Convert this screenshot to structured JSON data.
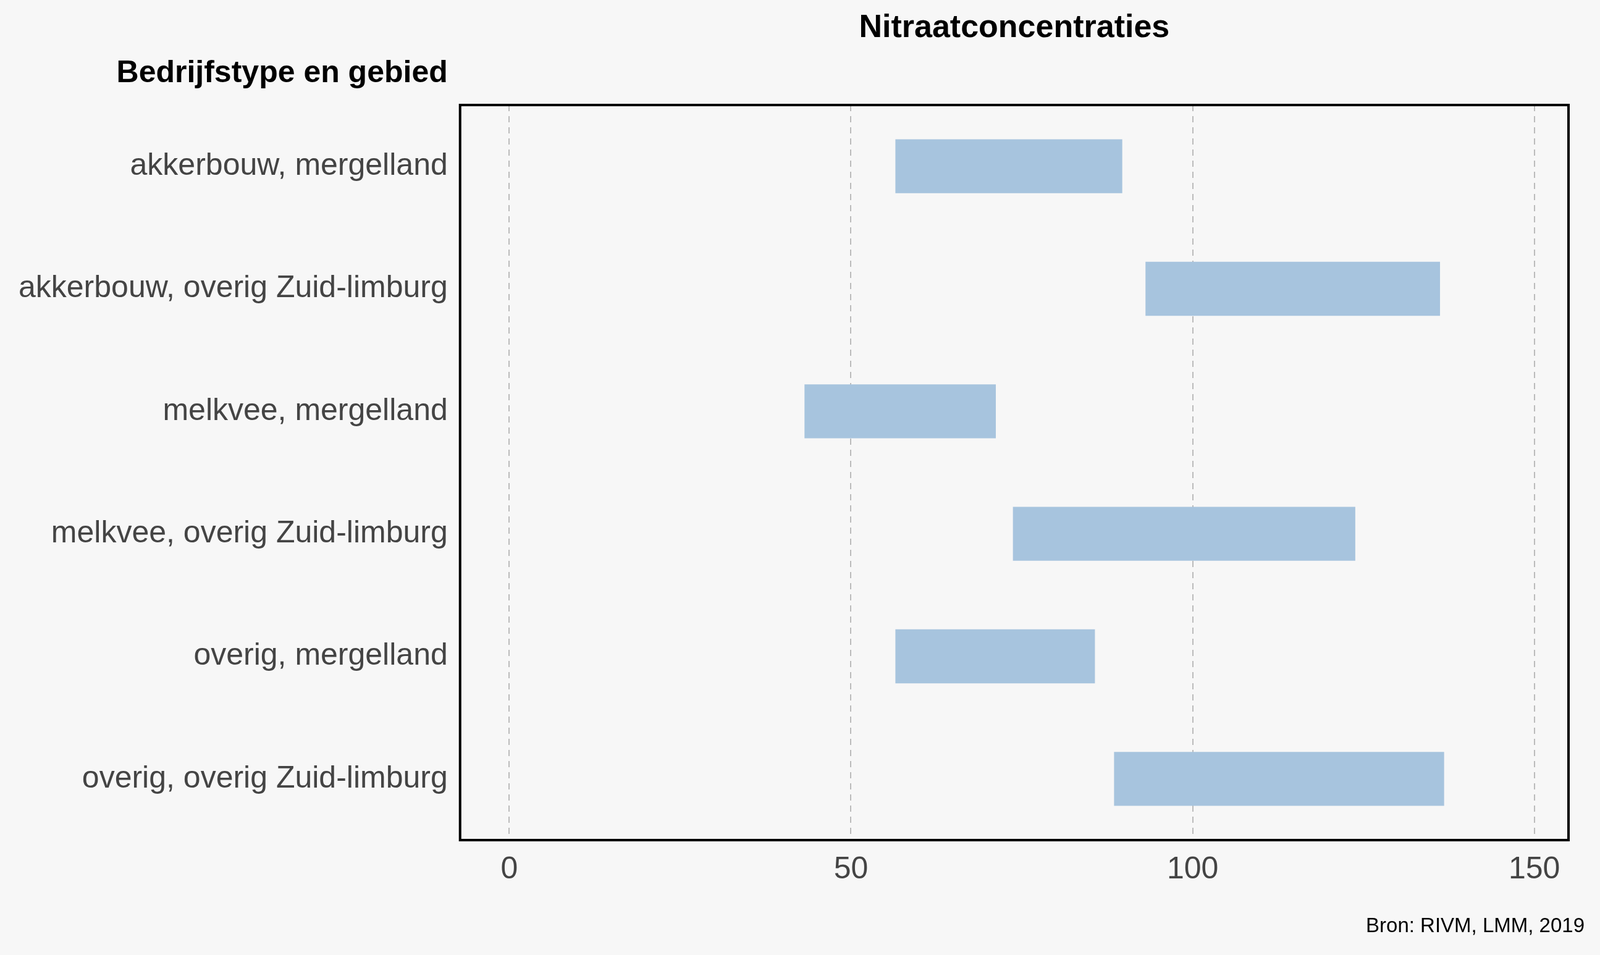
{
  "chart_data": {
    "type": "floating_bar",
    "orientation": "horizontal",
    "title": "Nitraatconcentraties",
    "y_label": "Bedrijfstype en gebied",
    "annotations": [
      "Bron: RIVM, LMM, 2019"
    ],
    "categories": [
      "akkerbouw, mergelland",
      "akkerbouw, overig Zuid-limburg",
      "melkvee, mergelland",
      "melkvee, overig Zuid-limburg",
      "overig, mergelland",
      "overig, overig Zuid-limburg"
    ],
    "values": [
      [
        56.5,
        89.7
      ],
      [
        93.1,
        136.2
      ],
      [
        43.2,
        71.2
      ],
      [
        73.7,
        123.8
      ],
      [
        56.5,
        85.7
      ],
      [
        88.5,
        136.8
      ]
    ],
    "color": "#a7c4de",
    "xlim": [
      -7.2,
      155
    ],
    "xticks": [
      0,
      50,
      100,
      150
    ],
    "grid": true
  }
}
